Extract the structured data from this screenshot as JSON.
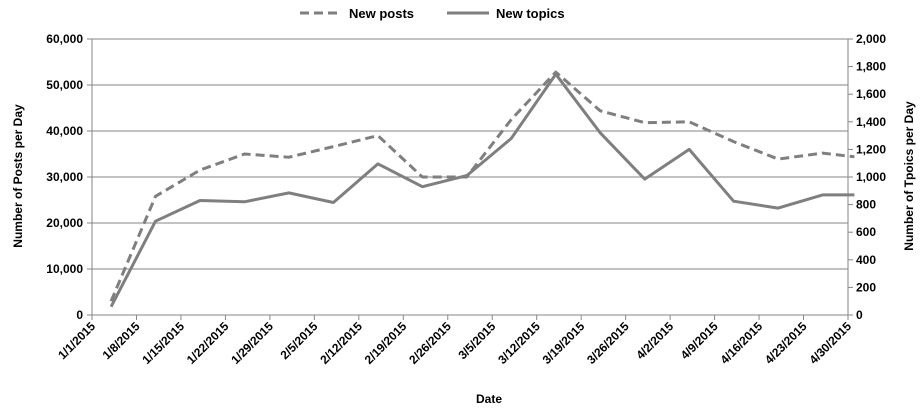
{
  "chart_data": {
    "type": "line",
    "xlabel": "Date",
    "ylabel": "Number of Posts per Day",
    "y2label": "Number of Tpoics per Day",
    "legend_position": "top-center",
    "grid": true,
    "colors": {
      "line": "#7f7f7f",
      "grid": "#868686",
      "text": "#000000"
    },
    "categories": [
      "1/1/2015",
      "1/8/2015",
      "1/15/2015",
      "1/22/2015",
      "1/29/2015",
      "2/5/2015",
      "2/12/2015",
      "2/19/2015",
      "2/26/2015",
      "3/5/2015",
      "3/12/2015",
      "3/19/2015",
      "3/26/2015",
      "4/2/2015",
      "4/9/2015",
      "4/16/2015",
      "4/23/2015",
      "4/30/2015"
    ],
    "ylim": [
      0,
      60000
    ],
    "yticks": [
      "0",
      "10,000",
      "20,000",
      "30,000",
      "40,000",
      "50,000",
      "60,000"
    ],
    "y2lim": [
      0,
      2000
    ],
    "y2ticks": [
      "0",
      "200",
      "400",
      "600",
      "800",
      "1,000",
      "1,200",
      "1,400",
      "1,600",
      "1,800",
      "2,000"
    ],
    "series": [
      {
        "name": "New posts",
        "axis": "left",
        "dash": true,
        "x": [
          "1/4/2015",
          "1/11/2015",
          "1/18/2015",
          "1/25/2015",
          "2/1/2015",
          "2/8/2015",
          "2/15/2015",
          "2/22/2015",
          "3/1/2015",
          "3/8/2015",
          "3/15/2015",
          "3/22/2015",
          "3/29/2015",
          "4/5/2015",
          "4/12/2015",
          "4/19/2015",
          "4/26/2015",
          "5/1/2015"
        ],
        "values": [
          3000,
          25800,
          31500,
          35000,
          34300,
          36600,
          39000,
          30000,
          30000,
          42500,
          52800,
          44400,
          41800,
          42000,
          37700,
          33900,
          35200,
          34400
        ]
      },
      {
        "name": "New topics",
        "axis": "right",
        "dash": false,
        "x": [
          "1/4/2015",
          "1/11/2015",
          "1/18/2015",
          "1/25/2015",
          "2/1/2015",
          "2/8/2015",
          "2/15/2015",
          "2/22/2015",
          "3/1/2015",
          "3/8/2015",
          "3/15/2015",
          "3/22/2015",
          "3/29/2015",
          "4/5/2015",
          "4/12/2015",
          "4/19/2015",
          "4/26/2015",
          "5/1/2015"
        ],
        "values": [
          60,
          680,
          830,
          820,
          885,
          815,
          1095,
          930,
          1010,
          1280,
          1745,
          1320,
          985,
          1200,
          825,
          775,
          870,
          870
        ]
      }
    ]
  }
}
